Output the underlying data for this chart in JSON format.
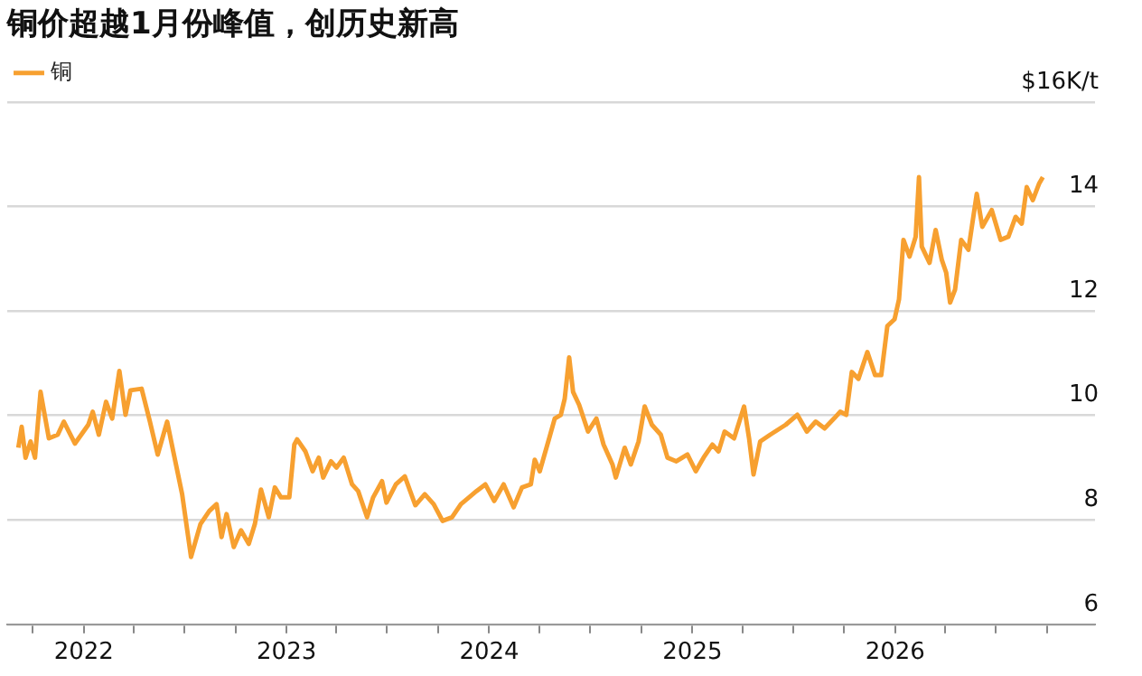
{
  "chart_data": {
    "type": "line",
    "title": "铜价超越1月份峰值，创历史新高",
    "legend": "top left",
    "grid": "y",
    "marker": "none",
    "line_style": "solid",
    "xlim": [
      "2021-08-16",
      "2026-12-27"
    ],
    "xticks": [
      {
        "value": "2021-10",
        "label": null
      },
      "2022",
      {
        "value": "2022-04",
        "label": null
      },
      {
        "value": "2022-07",
        "label": null
      },
      {
        "value": "2022-10",
        "label": null
      },
      "2023",
      {
        "value": "2023-04",
        "label": null
      },
      {
        "value": "2023-07",
        "label": null
      },
      {
        "value": "2023-10",
        "label": null
      },
      "2024",
      {
        "value": "2024-04",
        "label": null
      },
      {
        "value": "2024-07",
        "label": null
      },
      {
        "value": "2024-10",
        "label": null
      },
      "2025",
      {
        "value": "2025-04",
        "label": null
      },
      {
        "value": "2025-07",
        "label": null
      },
      {
        "value": "2025-10",
        "label": null
      },
      "2026",
      {
        "value": "2026-04",
        "label": null
      },
      {
        "value": "2026-07",
        "label": null
      },
      {
        "value": "2026-10",
        "label": null
      }
    ],
    "ylim": [
      6,
      16
    ],
    "yticks": [
      6,
      8,
      10,
      12,
      14,
      {
        "value": 16,
        "label": "$16K/t"
      }
    ],
    "x": [
      "2021-09-05",
      "2021-09-11",
      "2021-09-18",
      "2021-09-27",
      "2021-10-05",
      "2021-10-15",
      "2021-10-30",
      "2021-11-15",
      "2021-11-26",
      "2021-12-16",
      "2022-01-09",
      "2022-01-17",
      "2022-01-28",
      "2022-02-10",
      "2022-02-21",
      "2022-03-06",
      "2022-03-17",
      "2022-03-26",
      "2022-04-15",
      "2022-04-30",
      "2022-05-14",
      "2022-05-31",
      "2022-06-11",
      "2022-06-27",
      "2022-07-13",
      "2022-07-30",
      "2022-08-15",
      "2022-08-28",
      "2022-09-06",
      "2022-09-15",
      "2022-09-28",
      "2022-10-11",
      "2022-10-25",
      "2022-11-05",
      "2022-11-16",
      "2022-11-30",
      "2022-12-11",
      "2022-12-22",
      "2023-01-06",
      "2023-01-15",
      "2023-01-20",
      "2023-02-04",
      "2023-02-17",
      "2023-02-28",
      "2023-03-08",
      "2023-03-22",
      "2023-04-01",
      "2023-04-14",
      "2023-04-29",
      "2023-05-10",
      "2023-05-26",
      "2023-06-06",
      "2023-06-22",
      "2023-06-30",
      "2023-07-17",
      "2023-08-02",
      "2023-08-21",
      "2023-09-07",
      "2023-09-23",
      "2023-10-09",
      "2023-10-26",
      "2023-11-11",
      "2023-11-28",
      "2023-12-09",
      "2023-12-25",
      "2024-01-10",
      "2024-01-27",
      "2024-02-14",
      "2024-02-29",
      "2024-03-16",
      "2024-03-23",
      "2024-04-01",
      "2024-04-18",
      "2024-04-28",
      "2024-05-09",
      "2024-05-16",
      "2024-05-24",
      "2024-05-31",
      "2024-06-11",
      "2024-06-27",
      "2024-07-12",
      "2024-07-25",
      "2024-08-10",
      "2024-08-16",
      "2024-09-01",
      "2024-09-12",
      "2024-09-26",
      "2024-10-07",
      "2024-10-20",
      "2024-11-05",
      "2024-11-17",
      "2024-12-03",
      "2024-12-23",
      "2025-01-07",
      "2025-01-21",
      "2025-02-06",
      "2025-02-17",
      "2025-02-28",
      "2025-03-17",
      "2025-04-04",
      "2025-04-13",
      "2025-04-21",
      "2025-05-03",
      "2025-05-21",
      "2025-06-18",
      "2025-07-09",
      "2025-07-26",
      "2025-08-11",
      "2025-08-27",
      "2025-09-13",
      "2025-09-24",
      "2025-10-05",
      "2025-10-15",
      "2025-10-27",
      "2025-11-12",
      "2025-11-26",
      "2025-12-07",
      "2025-12-18",
      "2025-12-31",
      "2026-01-08",
      "2026-01-16",
      "2026-01-27",
      "2026-02-07",
      "2026-02-13",
      "2026-02-18",
      "2026-03-04",
      "2026-03-15",
      "2026-03-26",
      "2026-04-03",
      "2026-04-10",
      "2026-04-19",
      "2026-04-30",
      "2026-05-13",
      "2026-05-28",
      "2026-06-07",
      "2026-06-24",
      "2026-07-10",
      "2026-07-24",
      "2026-08-06",
      "2026-08-17",
      "2026-08-26",
      "2026-09-06",
      "2026-09-17",
      "2026-09-24"
    ],
    "series": [
      {
        "name": "铜",
        "color": "#f7a030",
        "values": [
          9.38,
          9.78,
          9.19,
          9.5,
          9.19,
          10.45,
          9.56,
          9.63,
          9.88,
          9.46,
          9.82,
          10.07,
          9.63,
          10.26,
          9.94,
          10.85,
          10.01,
          10.48,
          10.51,
          9.88,
          9.25,
          9.88,
          9.31,
          8.49,
          7.29,
          7.92,
          8.17,
          8.3,
          7.67,
          8.11,
          7.48,
          7.8,
          7.54,
          7.92,
          8.58,
          8.05,
          8.62,
          8.43,
          8.43,
          9.44,
          9.54,
          9.31,
          8.93,
          9.19,
          8.81,
          9.12,
          9.0,
          9.19,
          8.68,
          8.55,
          8.05,
          8.43,
          8.74,
          8.33,
          8.68,
          8.83,
          8.28,
          8.49,
          8.3,
          7.98,
          8.05,
          8.3,
          8.45,
          8.55,
          8.68,
          8.36,
          8.68,
          8.24,
          8.62,
          8.68,
          9.15,
          8.93,
          9.56,
          9.94,
          10.01,
          10.32,
          11.11,
          10.45,
          10.2,
          9.69,
          9.94,
          9.44,
          9.06,
          8.81,
          9.38,
          9.06,
          9.5,
          10.17,
          9.82,
          9.63,
          9.19,
          9.12,
          9.25,
          8.93,
          9.19,
          9.44,
          9.31,
          9.69,
          9.56,
          10.17,
          9.56,
          8.87,
          9.5,
          9.63,
          9.82,
          10.01,
          9.69,
          9.88,
          9.75,
          9.94,
          10.07,
          10.01,
          10.83,
          10.7,
          11.21,
          10.77,
          10.77,
          11.71,
          11.84,
          12.22,
          13.36,
          13.04,
          13.42,
          14.56,
          13.23,
          12.92,
          13.55,
          12.98,
          12.73,
          12.16,
          12.41,
          13.36,
          13.17,
          14.24,
          13.61,
          13.93,
          13.36,
          13.42,
          13.8,
          13.67,
          14.37,
          14.12,
          14.43,
          14.56
        ]
      }
    ]
  }
}
